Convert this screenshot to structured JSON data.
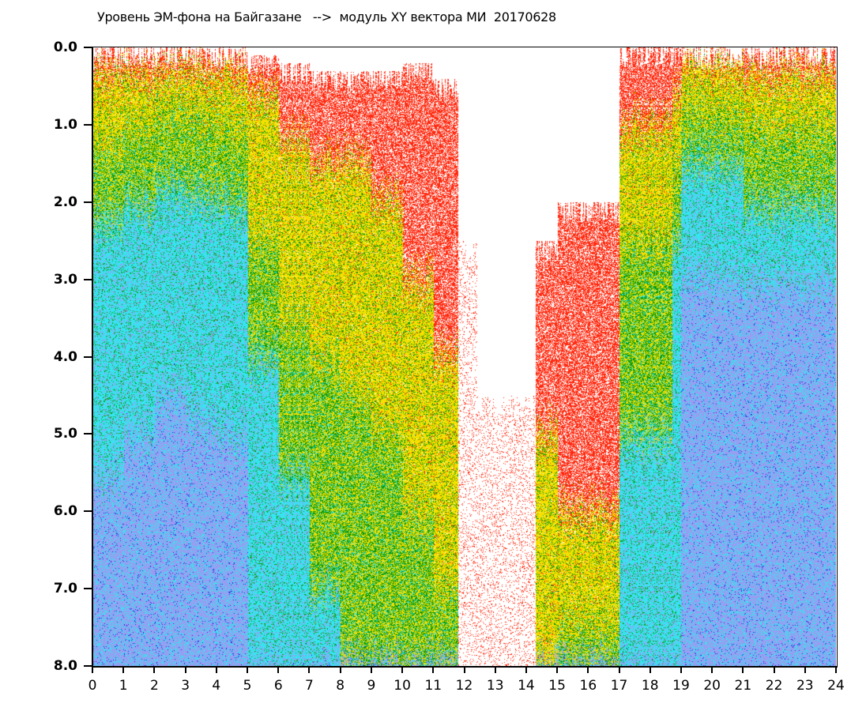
{
  "chart_data": {
    "type": "heatmap",
    "title": "Уровень ЭМ-фона на Байгазане   -->  модуль XY вектора МИ  20170628",
    "xlabel": "",
    "ylabel": "",
    "xlim": [
      0,
      24
    ],
    "ylim": [
      0,
      8
    ],
    "y_inverted": true,
    "x_ticks": [
      "0",
      "1",
      "2",
      "3",
      "4",
      "5",
      "6",
      "7",
      "8",
      "9",
      "10",
      "11",
      "12",
      "13",
      "14",
      "15",
      "16",
      "17",
      "18",
      "19",
      "20",
      "21",
      "22",
      "23",
      "24"
    ],
    "y_ticks": [
      "0.0",
      "1.0",
      "2.0",
      "3.0",
      "4.0",
      "5.0",
      "6.0",
      "7.0",
      "8.0"
    ],
    "colors": {
      "red": "#ff2a10",
      "yellow": "#f5e000",
      "green": "#0a9a0a",
      "cyan": "#33e6f0",
      "blue": "#9a9cf2",
      "dark_blue": "#2020e0"
    },
    "color_order": [
      "red",
      "yellow",
      "green",
      "cyan",
      "blue"
    ],
    "segments": [
      {
        "x": [
          0,
          1
        ],
        "start": 0,
        "red": 0.3,
        "yellow": 1.2,
        "green": 2.2,
        "cyan": 5.5,
        "sparse": false
      },
      {
        "x": [
          1,
          2
        ],
        "start": 0,
        "red": 0.3,
        "yellow": 1.0,
        "green": 2.0,
        "cyan": 5.0,
        "sparse": false
      },
      {
        "x": [
          2,
          3
        ],
        "start": 0,
        "red": 0.3,
        "yellow": 0.8,
        "green": 1.8,
        "cyan": 4.5,
        "sparse": false
      },
      {
        "x": [
          3,
          4
        ],
        "start": 0,
        "red": 0.3,
        "yellow": 0.9,
        "green": 1.9,
        "cyan": 4.8,
        "sparse": false
      },
      {
        "x": [
          4,
          5
        ],
        "start": 0,
        "red": 0.3,
        "yellow": 1.0,
        "green": 2.0,
        "cyan": 5.0,
        "sparse": false
      },
      {
        "x": [
          5,
          6
        ],
        "start": 0.1,
        "red": 0.6,
        "yellow": 2.5,
        "green": 4.0,
        "cyan": 8.0,
        "sparse": false
      },
      {
        "x": [
          6,
          7
        ],
        "start": 0.2,
        "red": 1.2,
        "yellow": 3.5,
        "green": 5.5,
        "cyan": 8.0,
        "sparse": false
      },
      {
        "x": [
          7,
          8
        ],
        "start": 0.3,
        "red": 1.5,
        "yellow": 4.0,
        "green": 7.0,
        "cyan": 8.0,
        "sparse": false
      },
      {
        "x": [
          8,
          9
        ],
        "start": 0.3,
        "red": 1.5,
        "yellow": 4.5,
        "green": 8.0,
        "cyan": 8.0,
        "sparse": false
      },
      {
        "x": [
          9,
          10
        ],
        "start": 0.3,
        "red": 2.0,
        "yellow": 5.0,
        "green": 8.0,
        "cyan": 8.0,
        "sparse": false
      },
      {
        "x": [
          10,
          11
        ],
        "start": 0.2,
        "red": 3.0,
        "yellow": 6.0,
        "green": 8.0,
        "cyan": 8.0,
        "sparse": false
      },
      {
        "x": [
          11,
          11.8
        ],
        "start": 0.4,
        "red": 4.0,
        "yellow": 7.0,
        "green": 8.0,
        "cyan": 8.0,
        "sparse": false
      },
      {
        "x": [
          11.8,
          12.4
        ],
        "start": 2.5,
        "red": 8.0,
        "yellow": 8.0,
        "green": 8.0,
        "cyan": 8.0,
        "sparse": true
      },
      {
        "x": [
          12.4,
          14.3
        ],
        "start": 4.5,
        "red": 8.0,
        "yellow": 8.0,
        "green": 8.0,
        "cyan": 8.0,
        "sparse": true
      },
      {
        "x": [
          14.3,
          15
        ],
        "start": 2.5,
        "red": 5.0,
        "yellow": 8.0,
        "green": 8.0,
        "cyan": 8.0,
        "sparse": false
      },
      {
        "x": [
          15,
          17
        ],
        "start": 2.0,
        "red": 6.0,
        "yellow": 7.5,
        "green": 8.0,
        "cyan": 8.0,
        "sparse": false
      },
      {
        "x": [
          17,
          18.7
        ],
        "start": 0,
        "red": 1.0,
        "yellow": 2.5,
        "green": 5.0,
        "cyan": 8.0,
        "sparse": false
      },
      {
        "x": [
          18.7,
          19
        ],
        "start": 0,
        "red": 0.6,
        "yellow": 1.5,
        "green": 2.5,
        "cyan": 8.0,
        "sparse": false
      },
      {
        "x": [
          19,
          21
        ],
        "start": 0,
        "red": 0.2,
        "yellow": 0.8,
        "green": 1.5,
        "cyan": 3.0,
        "sparse": false
      },
      {
        "x": [
          21,
          24
        ],
        "start": 0,
        "red": 0.3,
        "yellow": 1.0,
        "green": 2.0,
        "cyan": 3.0,
        "sparse": false
      }
    ]
  }
}
